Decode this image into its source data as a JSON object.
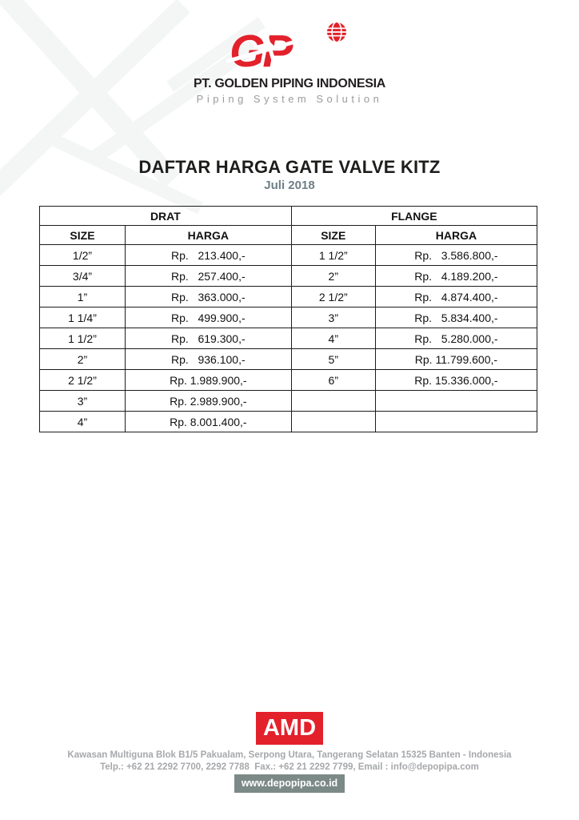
{
  "colors": {
    "brand_red": "#e3212b",
    "subtitle_gray": "#6d7f86",
    "footer_gray": "#a6a8ab",
    "badge_bg": "#7c8a87"
  },
  "header": {
    "logo_text": "GP",
    "company_name": "PT. GOLDEN PIPING INDONESIA",
    "tagline": "Piping System Solution"
  },
  "title": {
    "heading": "DAFTAR HARGA GATE VALVE KITZ",
    "subheading": "Juli 2018"
  },
  "table": {
    "groups": [
      {
        "label": "DRAT"
      },
      {
        "label": "FLANGE"
      }
    ],
    "columns": [
      "SIZE",
      "HARGA",
      "SIZE",
      "HARGA"
    ],
    "rows": [
      [
        "1/2”",
        "Rp.   213.400,-",
        "1 1/2”",
        "Rp.   3.586.800,-"
      ],
      [
        "3/4”",
        "Rp.   257.400,-",
        "2”",
        "Rp.   4.189.200,-"
      ],
      [
        "1”",
        "Rp.   363.000,-",
        "2 1/2”",
        "Rp.   4.874.400,-"
      ],
      [
        "1 1/4”",
        "Rp.   499.900,-",
        "3”",
        "Rp.   5.834.400,-"
      ],
      [
        "1 1/2”",
        "Rp.   619.300,-",
        "4”",
        "Rp.   5.280.000,-"
      ],
      [
        "2”",
        "Rp.   936.100,-",
        "5”",
        "Rp. 11.799.600,-"
      ],
      [
        "2 1/2”",
        "Rp. 1.989.900,-",
        "6”",
        "Rp. 15.336.000,-"
      ],
      [
        "3”",
        "Rp. 2.989.900,-",
        "",
        ""
      ],
      [
        "4”",
        "Rp. 8.001.400,-",
        "",
        ""
      ]
    ]
  },
  "footer": {
    "logo_text": "AMD",
    "address": "Kawasan Multiguna Blok B1/5 Pakualam, Serpong Utara, Tangerang Selatan 15325 Banten - Indonesia",
    "contact": "Telp.: +62 21 2292 7700, 2292 7788  Fax.: +62 21 2292 7799, Email : info@depopipa.com",
    "website": "www.depopipa.co.id"
  }
}
